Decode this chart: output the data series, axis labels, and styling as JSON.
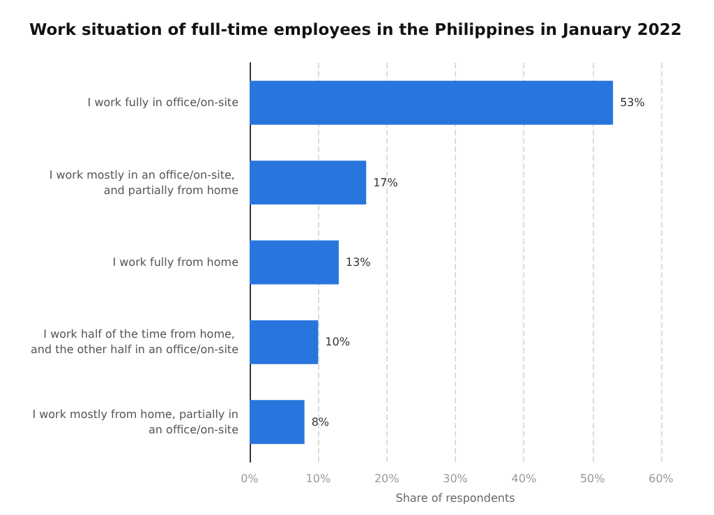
{
  "chart_data": {
    "type": "bar",
    "orientation": "horizontal",
    "title": "Work situation of full-time employees in the Philippines in January 2022",
    "xlabel": "Share of respondents",
    "categories": [
      "I work fully in office/on-site",
      "I work mostly in an office/on-site, and partially from home",
      "I work fully from home",
      "I work half of the time from home, and the other half in an office/on-site",
      "I work mostly from home, partially in an office/on-site"
    ],
    "values": [
      53,
      17,
      13,
      10,
      8
    ],
    "color": "#2876dd",
    "value_labels": [
      "53%",
      "17%",
      "13%",
      "10%",
      "8%"
    ],
    "xlim": [
      0,
      60
    ],
    "xticks": [
      {
        "value": 0,
        "label": "0%"
      },
      {
        "value": 10,
        "label": "10%"
      },
      {
        "value": 20,
        "label": "20%"
      },
      {
        "value": 30,
        "label": "30%"
      },
      {
        "value": 40,
        "label": "40%"
      },
      {
        "value": 50,
        "label": "50%"
      },
      {
        "value": 60,
        "label": "60%"
      }
    ],
    "grid": "x"
  }
}
